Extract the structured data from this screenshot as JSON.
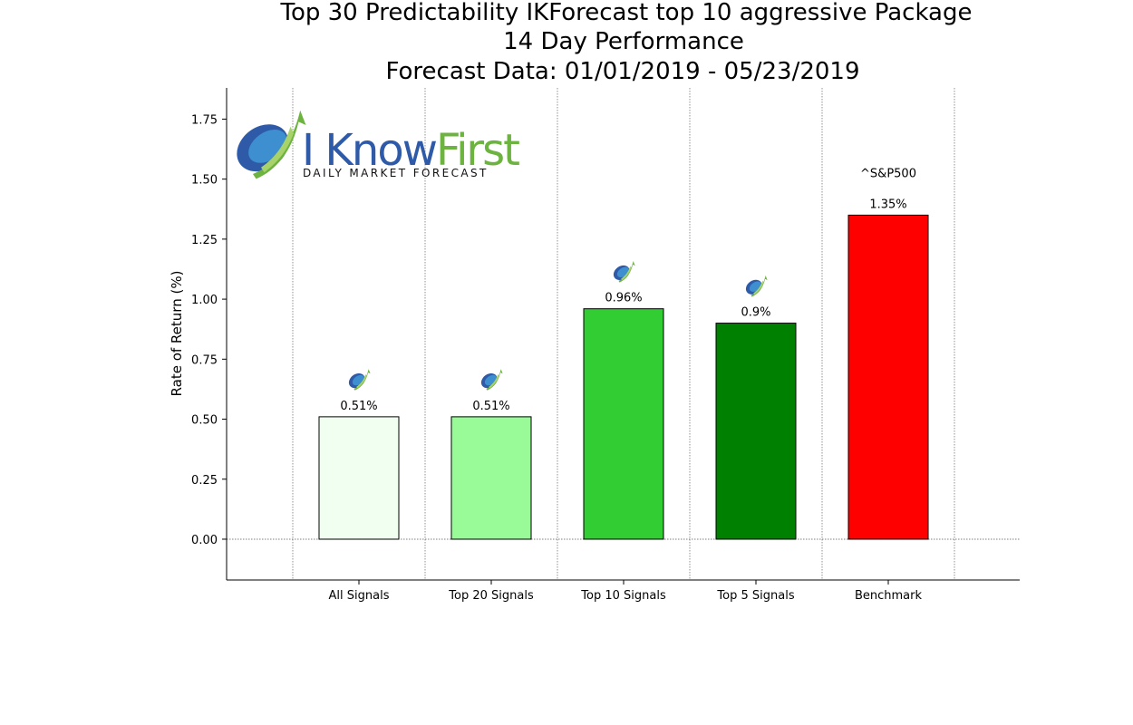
{
  "title_lines": [
    "Top 30 Predictability IKForecast top 10 aggressive Package",
    "14 Day Performance",
    "Forecast Data: 01/01/2019 - 05/23/2019"
  ],
  "logo": {
    "brand_i": "I ",
    "brand_know": "Know",
    "brand_first": "First",
    "tagline": "Daily Market Forecast"
  },
  "chart_data": {
    "type": "bar",
    "title": "Top 30 Predictability IKForecast top 10 aggressive Package\n14 Day Performance\nForecast Data: 01/01/2019 - 05/23/2019",
    "categories": [
      "All Signals",
      "Top 20 Signals",
      "Top 10 Signals",
      "Top 5 Signals",
      "Benchmark"
    ],
    "values": [
      0.51,
      0.51,
      0.96,
      0.9,
      1.35
    ],
    "data_labels": [
      "0.51%",
      "0.51%",
      "0.96%",
      "0.9%",
      "1.35%"
    ],
    "bar_colors": [
      "#f0fff0",
      "#98fb98",
      "#32cd32",
      "#008000",
      "#ff0000"
    ],
    "benchmark_label": "^S&P500",
    "ylabel": "Rate of Return (%)",
    "xlabel": "",
    "ylim": [
      -0.17,
      1.88
    ],
    "yticks": [
      0.0,
      0.25,
      0.5,
      0.75,
      1.0,
      1.25,
      1.5,
      1.75
    ],
    "ytick_labels": [
      "0.00",
      "0.25",
      "0.50",
      "0.75",
      "1.00",
      "1.25",
      "1.50",
      "1.75"
    ],
    "grid": true,
    "signal_icon_on": [
      true,
      true,
      true,
      true,
      false
    ],
    "colors": {
      "logo_blue": "#2e5aa8",
      "logo_green": "#6cb33f"
    }
  }
}
